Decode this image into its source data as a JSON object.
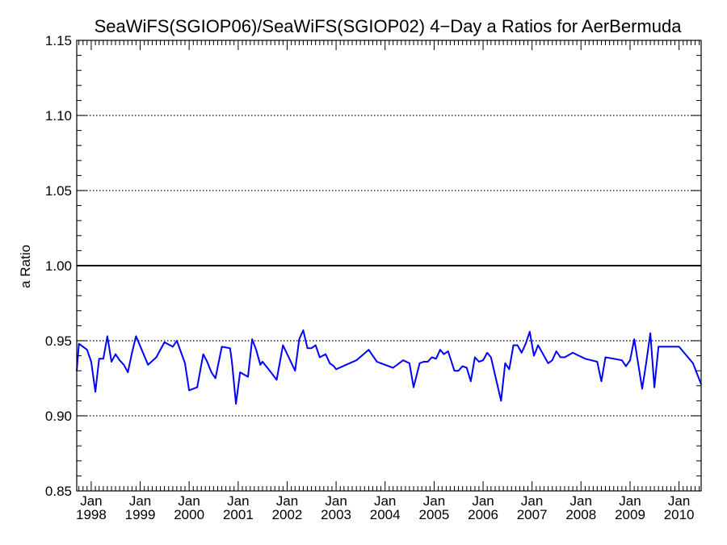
{
  "chart_data": {
    "type": "line",
    "title": "SeaWiFS(SGIOP06)/SeaWiFS(SGIOP02) 4−Day a Ratios for AerBermuda",
    "ylabel": "a Ratio",
    "xlabel": "",
    "ylim": [
      0.85,
      1.15
    ],
    "xlim": [
      "1997-09-15",
      "2010-06-15"
    ],
    "yticks": [
      "0.85",
      "0.90",
      "0.95",
      "1.00",
      "1.05",
      "1.10",
      "1.15"
    ],
    "ytick_values": [
      0.85,
      0.9,
      0.95,
      1.0,
      1.05,
      1.1,
      1.15
    ],
    "xticks": [
      {
        "month": "Jan",
        "year": "1998",
        "date": "1998-01-01"
      },
      {
        "month": "Jan",
        "year": "1999",
        "date": "1999-01-01"
      },
      {
        "month": "Jan",
        "year": "2000",
        "date": "2000-01-01"
      },
      {
        "month": "Jan",
        "year": "2001",
        "date": "2001-01-01"
      },
      {
        "month": "Jan",
        "year": "2002",
        "date": "2002-01-01"
      },
      {
        "month": "Jan",
        "year": "2003",
        "date": "2003-01-01"
      },
      {
        "month": "Jan",
        "year": "2004",
        "date": "2004-01-01"
      },
      {
        "month": "Jan",
        "year": "2005",
        "date": "2005-01-01"
      },
      {
        "month": "Jan",
        "year": "2006",
        "date": "2006-01-01"
      },
      {
        "month": "Jan",
        "year": "2007",
        "date": "2007-01-01"
      },
      {
        "month": "Jan",
        "year": "2008",
        "date": "2008-01-01"
      },
      {
        "month": "Jan",
        "year": "2009",
        "date": "2009-01-01"
      },
      {
        "month": "Jan",
        "year": "2010",
        "date": "2010-01-01"
      }
    ],
    "grid": "horizontal dotted at major ticks",
    "reference_line": 1.0,
    "series_color": "#0000ff",
    "reference_color": "#000000",
    "series": [
      {
        "x": [
          "1997-09-15",
          "1997-10-01",
          "1997-11-01",
          "1997-12-01",
          "1998-01-01",
          "1998-02-01",
          "1998-03-01",
          "1998-04-01",
          "1998-05-01",
          "1998-06-01",
          "1998-07-01",
          "1998-08-01",
          "1998-09-01",
          "1998-10-01",
          "1998-11-01",
          "1998-12-01",
          "1999-03-01",
          "1999-05-01",
          "1999-07-01",
          "1999-09-01",
          "1999-10-01",
          "1999-12-01",
          "2000-01-01",
          "2000-03-01",
          "2000-04-15",
          "2000-05-15",
          "2000-06-15",
          "2000-07-15",
          "2000-09-01",
          "2000-11-01",
          "2000-11-15",
          "2000-12-15",
          "2001-01-15",
          "2001-03-15",
          "2001-04-15",
          "2001-05-15",
          "2001-06-15",
          "2001-07-01",
          "2001-08-15",
          "2001-10-15",
          "2001-12-01",
          "2002-03-01",
          "2002-04-01",
          "2002-05-01",
          "2002-06-01",
          "2002-07-01",
          "2002-08-01",
          "2002-09-01",
          "2002-10-15",
          "2002-11-15",
          "2002-12-15",
          "2003-01-01",
          "2003-06-01",
          "2003-09-01",
          "2003-11-01",
          "2003-12-01",
          "2004-03-01",
          "2004-05-15",
          "2004-07-01",
          "2004-08-01",
          "2004-09-15",
          "2004-10-15",
          "2004-11-15",
          "2004-12-15",
          "2005-01-15",
          "2005-02-15",
          "2005-03-15",
          "2005-04-15",
          "2005-06-01",
          "2005-07-01",
          "2005-08-01",
          "2005-09-01",
          "2005-10-01",
          "2005-11-01",
          "2005-12-01",
          "2006-01-01",
          "2006-02-01",
          "2006-03-01",
          "2006-05-15",
          "2006-06-15",
          "2006-07-15",
          "2006-08-15",
          "2006-09-15",
          "2006-10-15",
          "2006-11-15",
          "2006-12-15",
          "2007-01-15",
          "2007-02-15",
          "2007-05-01",
          "2007-06-01",
          "2007-07-01",
          "2007-08-01",
          "2007-09-01",
          "2007-11-01",
          "2008-02-01",
          "2008-05-01",
          "2008-06-01",
          "2008-07-01",
          "2008-09-01",
          "2008-11-01",
          "2008-12-01",
          "2009-01-01",
          "2009-02-01",
          "2009-04-01",
          "2009-05-01",
          "2009-06-01",
          "2009-07-01",
          "2009-08-01",
          "2009-09-15",
          "2009-11-01",
          "2010-01-01",
          "2010-04-15",
          "2010-05-15",
          "2010-06-15"
        ],
        "values": [
          0.93,
          0.948,
          0.946,
          0.944,
          0.936,
          0.916,
          0.938,
          0.938,
          0.953,
          0.936,
          0.941,
          0.937,
          0.934,
          0.929,
          0.942,
          0.953,
          0.934,
          0.939,
          0.949,
          0.946,
          0.95,
          0.935,
          0.917,
          0.919,
          0.941,
          0.936,
          0.929,
          0.925,
          0.946,
          0.945,
          0.936,
          0.908,
          0.929,
          0.926,
          0.951,
          0.944,
          0.934,
          0.936,
          0.931,
          0.924,
          0.947,
          0.93,
          0.951,
          0.957,
          0.945,
          0.945,
          0.947,
          0.939,
          0.941,
          0.935,
          0.933,
          0.931,
          0.937,
          0.944,
          0.936,
          0.935,
          0.932,
          0.937,
          0.935,
          0.919,
          0.935,
          0.936,
          0.936,
          0.939,
          0.938,
          0.944,
          0.941,
          0.943,
          0.93,
          0.93,
          0.933,
          0.932,
          0.923,
          0.939,
          0.936,
          0.937,
          0.942,
          0.939,
          0.91,
          0.935,
          0.931,
          0.947,
          0.947,
          0.942,
          0.948,
          0.956,
          0.94,
          0.947,
          0.935,
          0.937,
          0.943,
          0.939,
          0.939,
          0.942,
          0.938,
          0.936,
          0.923,
          0.939,
          0.938,
          0.937,
          0.933,
          0.937,
          0.951,
          0.918,
          0.935,
          0.955,
          0.919,
          0.946,
          0.946,
          0.946,
          0.946,
          0.935,
          0.928,
          0.921
        ]
      }
    ]
  }
}
